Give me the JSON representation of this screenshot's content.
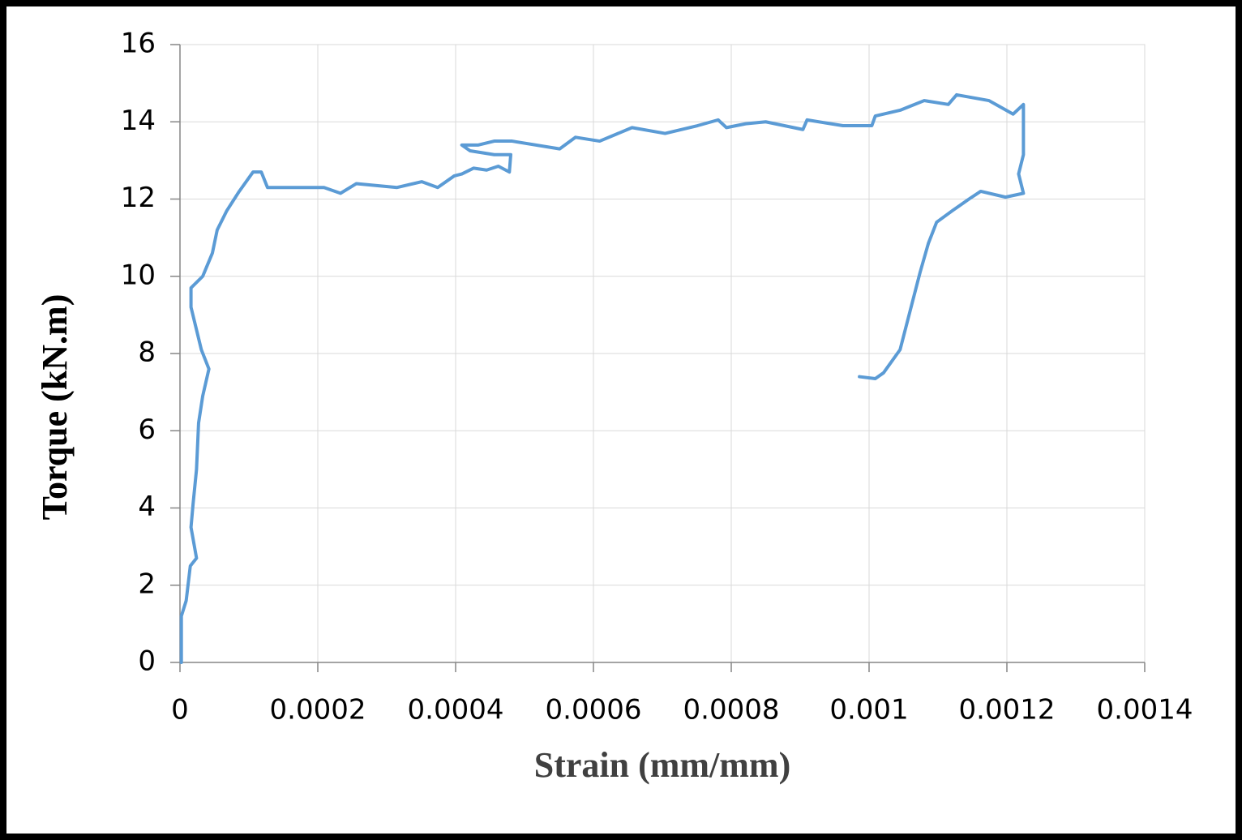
{
  "chart_data": {
    "type": "line",
    "x_label": "Strain (mm/mm)",
    "y_label": "Torque (kN.m)",
    "color": "#5b9bd5",
    "grid": true,
    "xlim": [
      0,
      0.0014
    ],
    "xticks": [
      0,
      0.0002,
      0.0004,
      0.0006,
      0.0008,
      0.001,
      0.0012,
      0.0014
    ],
    "ylim": [
      0,
      16
    ],
    "yticks": [
      0,
      2,
      4,
      6,
      8,
      10,
      12,
      14,
      16
    ],
    "x": [
      2e-06,
      2e-06,
      9e-06,
      1.5e-05,
      2.4e-05,
      1.6e-05,
      1.9e-05,
      2.4e-05,
      2.7e-05,
      3.3e-05,
      4.2e-05,
      3.1e-05,
      1.6e-05,
      1.6e-05,
      3.3e-05,
      4.7e-05,
      5.4e-05,
      6.8e-05,
      8.6e-05,
      0.000106,
      0.000118,
      0.000127,
      0.000162,
      0.000209,
      0.000233,
      0.000256,
      0.000315,
      0.000351,
      0.000374,
      0.000398,
      0.000409,
      0.000426,
      0.000445,
      0.000462,
      0.000478,
      0.00048,
      0.000456,
      0.000421,
      0.000409,
      0.000433,
      0.000456,
      0.000482,
      0.000551,
      0.000574,
      0.000609,
      0.000656,
      0.000704,
      0.000751,
      0.000781,
      0.000793,
      0.000821,
      0.00085,
      0.000904,
      0.00091,
      0.000962,
      0.001004,
      0.001009,
      0.001045,
      0.00108,
      0.001115,
      0.001127,
      0.001174,
      0.001209,
      0.001224,
      0.001224,
      0.001217,
      0.001224,
      0.001198,
      0.001162,
      0.001145,
      0.001121,
      0.001098,
      0.001086,
      0.001074,
      0.001045,
      0.001021,
      0.001009,
      0.000986
    ],
    "values": [
      0,
      1.2,
      1.6,
      2.5,
      2.7,
      3.5,
      4.1,
      5.0,
      6.2,
      6.9,
      7.6,
      8.1,
      9.2,
      9.7,
      10.0,
      10.6,
      11.2,
      11.7,
      12.2,
      12.7,
      12.7,
      12.3,
      12.3,
      12.3,
      12.15,
      12.4,
      12.3,
      12.45,
      12.3,
      12.6,
      12.65,
      12.8,
      12.75,
      12.85,
      12.7,
      13.15,
      13.15,
      13.25,
      13.4,
      13.4,
      13.5,
      13.5,
      13.3,
      13.6,
      13.5,
      13.85,
      13.7,
      13.9,
      14.05,
      13.85,
      13.95,
      14.0,
      13.8,
      14.05,
      13.9,
      13.9,
      14.15,
      14.3,
      14.55,
      14.45,
      14.7,
      14.55,
      14.2,
      14.45,
      13.15,
      12.65,
      12.15,
      12.05,
      12.2,
      12.0,
      11.7,
      11.4,
      10.85,
      10.1,
      8.1,
      7.5,
      7.35,
      7.4
    ]
  }
}
